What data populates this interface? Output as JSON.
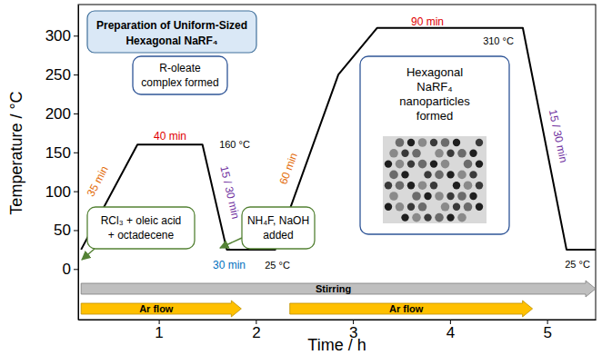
{
  "chart_data": {
    "type": "line",
    "title": [
      "Preparation of Uniform-Sized",
      "Hexagonal NaRF₄"
    ],
    "x_label": "Time / h",
    "y_label": "Temperature / °C",
    "x": [
      0.2,
      0.78,
      1.45,
      1.7,
      2.2,
      2.85,
      3.25,
      4.75,
      5.2,
      5.5
    ],
    "values": [
      25,
      160,
      160,
      25,
      25,
      250,
      310,
      310,
      25,
      25
    ],
    "color": "#000000",
    "xlim": [
      0.17,
      5.5
    ],
    "xticks": [
      1,
      2,
      3,
      4,
      5
    ],
    "ylim": [
      -65,
      340
    ],
    "yticks": [
      0,
      50,
      100,
      150,
      200,
      250,
      300
    ],
    "grid": false,
    "annotations": [
      {
        "lines": [
          "R-oleate",
          "complex formed"
        ]
      },
      {
        "lines": [
          "RCl₃ + oleic acid",
          "+ octadecene"
        ]
      },
      {
        "lines": [
          "NH₄F, NaOH",
          "added"
        ]
      },
      {
        "lines": [
          "Hexagonal",
          "NaRF₄",
          "nanoparticles",
          "formed"
        ]
      },
      {
        "lines": [
          "35 min"
        ]
      },
      {
        "lines": [
          "40 min"
        ]
      },
      {
        "lines": [
          "15 / 30 min"
        ]
      },
      {
        "lines": [
          "30 min"
        ]
      },
      {
        "lines": [
          "60 min"
        ]
      },
      {
        "lines": [
          "90 min"
        ]
      },
      {
        "lines": [
          "15 / 30 min"
        ]
      },
      {
        "lines": [
          "160 °C"
        ]
      },
      {
        "lines": [
          "25 °C"
        ]
      },
      {
        "lines": [
          "310 °C"
        ]
      },
      {
        "lines": [
          "25 °C"
        ]
      }
    ],
    "process_bars": [
      {
        "label": "Stirring",
        "x": [
          0.2,
          5.5
        ],
        "color": "#bfbfbf"
      },
      {
        "label": "Ar flow",
        "x": [
          0.2,
          1.85
        ],
        "color": "#ffc000"
      },
      {
        "label": "Ar flow",
        "x": [
          2.35,
          4.85
        ],
        "color": "#ffc000"
      }
    ]
  }
}
